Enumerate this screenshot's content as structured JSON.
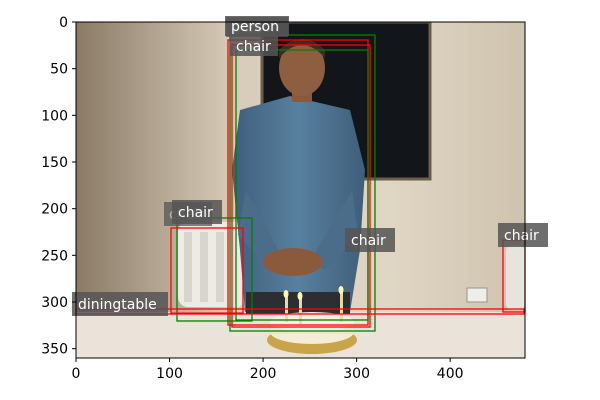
{
  "figure": {
    "x_ticks": [
      0,
      100,
      200,
      300,
      400
    ],
    "y_ticks": [
      0,
      50,
      100,
      150,
      200,
      250,
      300,
      350
    ],
    "x_range": [
      0,
      480
    ],
    "y_range": [
      0,
      360
    ]
  },
  "photo": {
    "subject": "man standing behind birthday cake",
    "colors": {
      "wall": "#cfc4b0",
      "shirt": "#4f7290",
      "window": "#111418",
      "table": "#e8e2d8",
      "chair": "#e9e9e2"
    }
  },
  "labels": {
    "person_main": "person",
    "person_ghost": "person",
    "chair_top": "chair",
    "chair_left": "chair",
    "chair_left_ghost": "chair",
    "chair_mid": "chair",
    "chair_right": "chair",
    "diningtable": "diningtable"
  },
  "box_colors": {
    "prediction": "#ff0000",
    "ground_truth": "#008000"
  }
}
